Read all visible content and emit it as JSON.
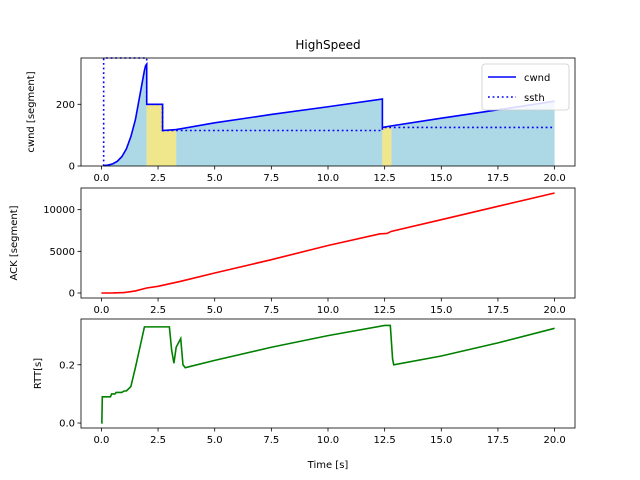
{
  "title": "HighSpeed",
  "xlabel": "Time [s]",
  "colors": {
    "cwnd": "#0000ff",
    "ssth": "#0000ff",
    "ack": "#ff0000",
    "rtt": "#008000",
    "fill_normal": "#add8e6",
    "fill_recovery": "#f0e68c"
  },
  "chart_data": [
    {
      "type": "line",
      "panel": "cwnd",
      "title": "HighSpeed",
      "ylabel": "cwnd [segment]",
      "xlim": [
        -0.9,
        20.9
      ],
      "ylim": [
        0,
        350
      ],
      "xticks": [
        "0.0",
        "2.5",
        "5.0",
        "7.5",
        "10.0",
        "12.5",
        "15.0",
        "17.5",
        "20.0"
      ],
      "xtick_values": [
        0,
        2.5,
        5,
        7.5,
        10,
        12.5,
        15,
        17.5,
        20
      ],
      "yticks": [
        "0",
        "200"
      ],
      "ytick_values": [
        0,
        200
      ],
      "legend": {
        "position": "top-right",
        "entries": [
          "cwnd",
          "ssth"
        ]
      },
      "series": [
        {
          "name": "cwnd",
          "style": "solid",
          "x": [
            0.1,
            0.3,
            0.5,
            0.7,
            0.9,
            1.1,
            1.3,
            1.5,
            1.7,
            1.9,
            1.95,
            2.0,
            2.0,
            2.7,
            2.7,
            3.3,
            5.0,
            7.5,
            10.0,
            12.4,
            12.4,
            12.8,
            15.0,
            17.5,
            20.0
          ],
          "y": [
            1,
            3,
            7,
            15,
            30,
            55,
            95,
            150,
            230,
            310,
            325,
            330,
            200,
            200,
            115,
            118,
            140,
            167,
            192,
            217,
            125,
            130,
            155,
            182,
            210
          ]
        },
        {
          "name": "ssth",
          "style": "dotted",
          "x": [
            0.1,
            0.1,
            0.1,
            2.0,
            2.0,
            2.7,
            2.7,
            12.4,
            12.4,
            20.0
          ],
          "y": [
            0,
            350,
            350,
            350,
            200,
            200,
            115,
            115,
            125,
            125
          ]
        }
      ],
      "regions": [
        {
          "x0": 0.1,
          "x1": 2.0,
          "state": "normal"
        },
        {
          "x0": 2.0,
          "x1": 3.3,
          "state": "recovery"
        },
        {
          "x0": 3.3,
          "x1": 12.4,
          "state": "normal"
        },
        {
          "x0": 12.4,
          "x1": 12.8,
          "state": "recovery"
        },
        {
          "x0": 12.8,
          "x1": 20.0,
          "state": "normal"
        }
      ]
    },
    {
      "type": "line",
      "panel": "ack",
      "ylabel": "ACK [segment]",
      "xlim": [
        -0.9,
        20.9
      ],
      "ylim": [
        -600,
        12600
      ],
      "xticks": [
        "0.0",
        "2.5",
        "5.0",
        "7.5",
        "10.0",
        "12.5",
        "15.0",
        "17.5",
        "20.0"
      ],
      "xtick_values": [
        0,
        2.5,
        5,
        7.5,
        10,
        12.5,
        15,
        17.5,
        20
      ],
      "yticks": [
        "0",
        "5000",
        "10000"
      ],
      "ytick_values": [
        0,
        5000,
        10000
      ],
      "series": [
        {
          "name": "",
          "x": [
            0.0,
            0.5,
            1.0,
            1.5,
            2.0,
            2.5,
            3.0,
            3.5,
            5.0,
            7.5,
            10.0,
            12.3,
            12.6,
            12.8,
            15.0,
            17.5,
            20.0
          ],
          "y": [
            0,
            10,
            50,
            250,
            600,
            800,
            1100,
            1400,
            2400,
            4000,
            5700,
            7100,
            7150,
            7400,
            8800,
            10400,
            12000
          ]
        }
      ]
    },
    {
      "type": "line",
      "panel": "rtt",
      "ylabel": "RTT[s]",
      "xlabel": "Time [s]",
      "xlim": [
        -0.9,
        20.9
      ],
      "ylim": [
        -0.017,
        0.357
      ],
      "xticks": [
        "0.0",
        "2.5",
        "5.0",
        "7.5",
        "10.0",
        "12.5",
        "15.0",
        "17.5",
        "20.0"
      ],
      "xtick_values": [
        0,
        2.5,
        5,
        7.5,
        10,
        12.5,
        15,
        17.5,
        20
      ],
      "yticks": [
        "0.0",
        "0.2"
      ],
      "ytick_values": [
        0,
        0.2
      ],
      "series": [
        {
          "name": "",
          "x": [
            0.0,
            0.02,
            0.04,
            0.05,
            0.2,
            0.4,
            0.45,
            0.6,
            0.65,
            0.9,
            1.0,
            1.1,
            1.3,
            1.5,
            1.9,
            2.0,
            3.0,
            3.1,
            3.2,
            3.3,
            3.5,
            3.6,
            3.7,
            5.0,
            7.5,
            10.0,
            12.5,
            12.75,
            12.85,
            12.9,
            15.0,
            17.5,
            20.0
          ],
          "y": [
            0.0,
            0.0,
            0.09,
            0.09,
            0.09,
            0.09,
            0.1,
            0.1,
            0.105,
            0.105,
            0.11,
            0.11,
            0.125,
            0.19,
            0.33,
            0.33,
            0.33,
            0.25,
            0.205,
            0.26,
            0.29,
            0.2,
            0.19,
            0.215,
            0.26,
            0.3,
            0.335,
            0.335,
            0.22,
            0.2,
            0.23,
            0.275,
            0.325
          ]
        }
      ]
    }
  ]
}
